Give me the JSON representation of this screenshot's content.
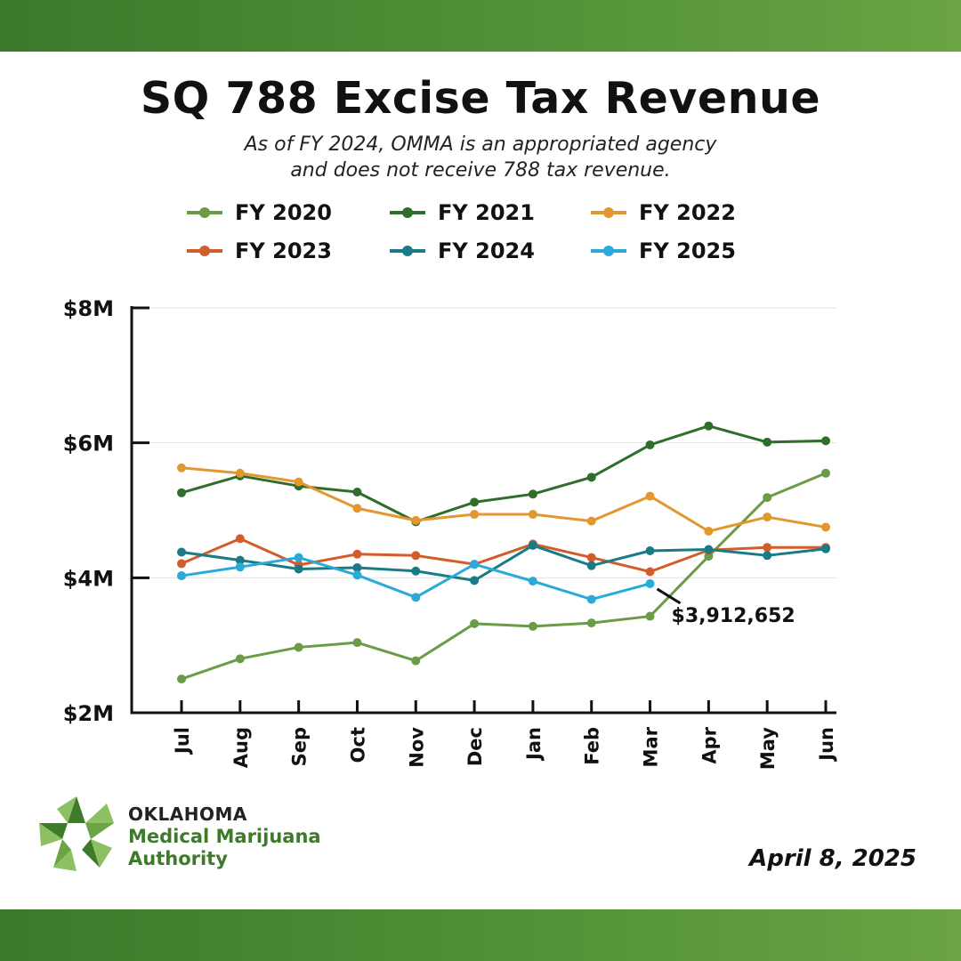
{
  "header": {
    "title": "SQ 788 Excise Tax Revenue",
    "subtitle_line1": "As of FY 2024, OMMA is an appropriated agency",
    "subtitle_line2": "and does not receive 788 tax revenue."
  },
  "footer": {
    "org_line1": "OKLAHOMA",
    "org_line2": "Medical Marijuana",
    "org_line3": "Authority",
    "date": "April 8, 2025"
  },
  "chart_data": {
    "type": "line",
    "title": "SQ 788 Excise Tax Revenue",
    "xlabel": "",
    "ylabel": "",
    "categories": [
      "Jul",
      "Aug",
      "Sep",
      "Oct",
      "Nov",
      "Dec",
      "Jan",
      "Feb",
      "Mar",
      "Apr",
      "May",
      "Jun"
    ],
    "ylim": [
      2000000,
      8000000
    ],
    "yticks": [
      2000000,
      4000000,
      6000000,
      8000000
    ],
    "ytick_labels": [
      "$2M",
      "$4M",
      "$6M",
      "$8M"
    ],
    "grid": true,
    "legend_position": "top",
    "series": [
      {
        "name": "FY 2020",
        "color": "#6a9b46",
        "values": [
          2500000,
          2800000,
          2970000,
          3040000,
          2770000,
          3320000,
          3280000,
          3330000,
          3430000,
          4320000,
          5190000,
          5550000
        ]
      },
      {
        "name": "FY 2021",
        "color": "#2f6e2a",
        "values": [
          5260000,
          5510000,
          5360000,
          5270000,
          4830000,
          5120000,
          5240000,
          5490000,
          5970000,
          6250000,
          6010000,
          6030000
        ]
      },
      {
        "name": "FY 2022",
        "color": "#e3972f",
        "values": [
          5630000,
          5550000,
          5420000,
          5030000,
          4850000,
          4940000,
          4940000,
          4840000,
          5210000,
          4690000,
          4900000,
          4750000
        ]
      },
      {
        "name": "FY 2023",
        "color": "#d35d2a",
        "values": [
          4210000,
          4580000,
          4190000,
          4350000,
          4330000,
          4200000,
          4500000,
          4300000,
          4090000,
          4410000,
          4450000,
          4450000
        ]
      },
      {
        "name": "FY 2024",
        "color": "#1a7a85",
        "values": [
          4380000,
          4260000,
          4130000,
          4150000,
          4100000,
          3960000,
          4480000,
          4180000,
          4400000,
          4420000,
          4330000,
          4430000
        ]
      },
      {
        "name": "FY 2025",
        "color": "#2aaad9",
        "values": [
          4030000,
          4160000,
          4300000,
          4040000,
          3710000,
          4200000,
          3950000,
          3680000,
          3912652,
          null,
          null,
          null
        ]
      }
    ],
    "annotations": [
      {
        "series": "FY 2025",
        "category": "Mar",
        "text": "$3,912,652"
      }
    ]
  }
}
